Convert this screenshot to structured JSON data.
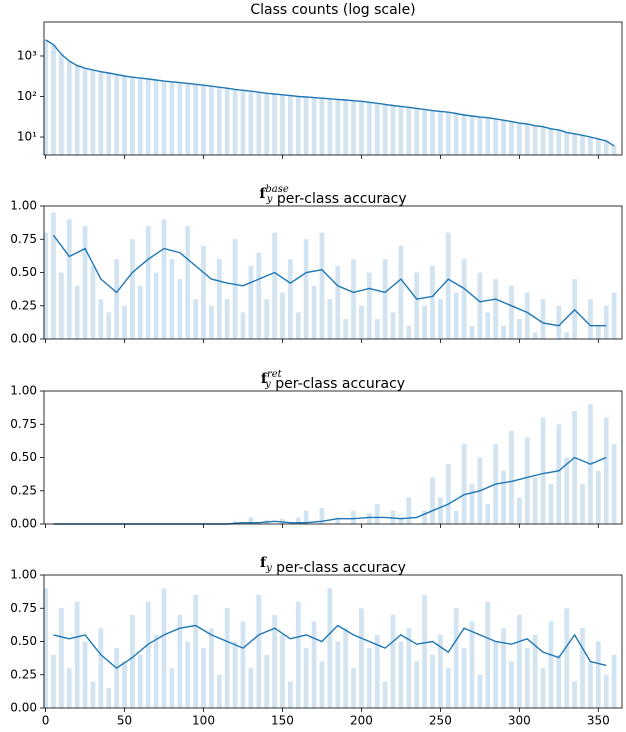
{
  "chart_data": [
    {
      "type": "bar",
      "title": "Class counts (log scale)",
      "log_y": true,
      "line_on_bars": true,
      "bar_color": "#d2e3f1",
      "line_color": "#1f77b4",
      "xlim": [
        -1,
        365
      ],
      "xticks": [
        0,
        50,
        100,
        150,
        200,
        250,
        300,
        350
      ],
      "xtick_labels": false,
      "ylim": [
        3.6,
        6900
      ],
      "yticks": [
        {
          "value": 10,
          "label": "10¹"
        },
        {
          "value": 100,
          "label": "10²"
        },
        {
          "value": 1000,
          "label": "10³"
        }
      ],
      "x": [
        0,
        5,
        10,
        15,
        20,
        25,
        30,
        35,
        40,
        45,
        50,
        55,
        60,
        65,
        70,
        75,
        80,
        85,
        90,
        95,
        100,
        105,
        110,
        115,
        120,
        125,
        130,
        135,
        140,
        145,
        150,
        155,
        160,
        165,
        170,
        175,
        180,
        185,
        190,
        195,
        200,
        205,
        210,
        215,
        220,
        225,
        230,
        235,
        240,
        245,
        250,
        255,
        260,
        265,
        270,
        275,
        280,
        285,
        290,
        295,
        300,
        305,
        310,
        315,
        320,
        325,
        330,
        335,
        340,
        345,
        350,
        355,
        360
      ],
      "bars": [
        2500,
        1900,
        1100,
        750,
        580,
        500,
        450,
        410,
        380,
        350,
        320,
        300,
        285,
        270,
        255,
        240,
        230,
        220,
        210,
        200,
        190,
        180,
        170,
        160,
        150,
        142,
        135,
        128,
        120,
        115,
        110,
        105,
        100,
        97,
        94,
        91,
        88,
        85,
        82,
        79,
        76,
        72,
        68,
        64,
        60,
        57,
        54,
        51,
        48,
        45,
        43,
        41,
        38,
        35,
        33,
        31,
        30,
        28,
        26,
        24,
        22,
        21,
        19,
        18,
        16,
        15,
        13,
        12,
        11,
        10,
        9,
        8,
        6
      ]
    },
    {
      "type": "bar",
      "title_parts": {
        "symbol": "f",
        "sub": "y",
        "sup": "base",
        "text": " per-class accuracy"
      },
      "log_y": false,
      "bar_color": "#d2e3f1",
      "line_color": "#1f77b4",
      "xlim": [
        -1,
        365
      ],
      "xticks": [
        0,
        50,
        100,
        150,
        200,
        250,
        300,
        350
      ],
      "xtick_labels": false,
      "ylim": [
        0,
        1
      ],
      "yticks": [
        {
          "value": 0,
          "label": "0.00"
        },
        {
          "value": 0.25,
          "label": "0.25"
        },
        {
          "value": 0.5,
          "label": "0.50"
        },
        {
          "value": 0.75,
          "label": "0.75"
        },
        {
          "value": 1,
          "label": "1.00"
        }
      ],
      "x": [
        0,
        5,
        10,
        15,
        20,
        25,
        30,
        35,
        40,
        45,
        50,
        55,
        60,
        65,
        70,
        75,
        80,
        85,
        90,
        95,
        100,
        105,
        110,
        115,
        120,
        125,
        130,
        135,
        140,
        145,
        150,
        155,
        160,
        165,
        170,
        175,
        180,
        185,
        190,
        195,
        200,
        205,
        210,
        215,
        220,
        225,
        230,
        235,
        240,
        245,
        250,
        255,
        260,
        265,
        270,
        275,
        280,
        285,
        290,
        295,
        300,
        305,
        310,
        315,
        320,
        325,
        330,
        335,
        340,
        345,
        350,
        355,
        360
      ],
      "bars": [
        0.8,
        0.95,
        0.5,
        0.9,
        0.4,
        0.85,
        0.55,
        0.3,
        0.2,
        0.6,
        0.25,
        0.75,
        0.4,
        0.85,
        0.5,
        0.9,
        0.6,
        0.45,
        0.85,
        0.3,
        0.7,
        0.25,
        0.6,
        0.3,
        0.75,
        0.2,
        0.55,
        0.65,
        0.3,
        0.8,
        0.35,
        0.6,
        0.2,
        0.75,
        0.4,
        0.8,
        0.3,
        0.55,
        0.15,
        0.6,
        0.25,
        0.5,
        0.15,
        0.6,
        0.2,
        0.7,
        0.1,
        0.5,
        0.25,
        0.55,
        0.3,
        0.8,
        0.35,
        0.6,
        0.1,
        0.5,
        0.2,
        0.45,
        0.1,
        0.4,
        0.15,
        0.35,
        0.05,
        0.3,
        0,
        0.25,
        0.05,
        0.45,
        0,
        0.3,
        0.1,
        0.25,
        0.35
      ],
      "line_x": [
        5,
        15,
        25,
        35,
        45,
        55,
        65,
        75,
        85,
        95,
        105,
        115,
        125,
        135,
        145,
        155,
        165,
        175,
        185,
        195,
        205,
        215,
        225,
        235,
        245,
        255,
        265,
        275,
        285,
        295,
        305,
        315,
        325,
        335,
        345,
        355
      ],
      "line_values": [
        0.78,
        0.62,
        0.68,
        0.45,
        0.35,
        0.5,
        0.6,
        0.68,
        0.65,
        0.55,
        0.45,
        0.42,
        0.4,
        0.45,
        0.5,
        0.42,
        0.5,
        0.52,
        0.4,
        0.35,
        0.38,
        0.35,
        0.45,
        0.3,
        0.32,
        0.45,
        0.38,
        0.28,
        0.3,
        0.25,
        0.2,
        0.12,
        0.1,
        0.22,
        0.1,
        0.1
      ]
    },
    {
      "type": "bar",
      "title_parts": {
        "symbol": "f",
        "sub": "y",
        "sup": "ret",
        "text": " per-class accuracy"
      },
      "log_y": false,
      "bar_color": "#d2e3f1",
      "line_color": "#1f77b4",
      "xlim": [
        -1,
        365
      ],
      "xticks": [
        0,
        50,
        100,
        150,
        200,
        250,
        300,
        350
      ],
      "xtick_labels": false,
      "ylim": [
        0,
        1
      ],
      "yticks": [
        {
          "value": 0,
          "label": "0.00"
        },
        {
          "value": 0.25,
          "label": "0.25"
        },
        {
          "value": 0.5,
          "label": "0.50"
        },
        {
          "value": 0.75,
          "label": "0.75"
        },
        {
          "value": 1,
          "label": "1.00"
        }
      ],
      "x": [
        0,
        5,
        10,
        15,
        20,
        25,
        30,
        35,
        40,
        45,
        50,
        55,
        60,
        65,
        70,
        75,
        80,
        85,
        90,
        95,
        100,
        105,
        110,
        115,
        120,
        125,
        130,
        135,
        140,
        145,
        150,
        155,
        160,
        165,
        170,
        175,
        180,
        185,
        190,
        195,
        200,
        205,
        210,
        215,
        220,
        225,
        230,
        235,
        240,
        245,
        250,
        255,
        260,
        265,
        270,
        275,
        280,
        285,
        290,
        295,
        300,
        305,
        310,
        315,
        320,
        325,
        330,
        335,
        340,
        345,
        350,
        355,
        360
      ],
      "bars": [
        0,
        0,
        0,
        0,
        0,
        0,
        0,
        0,
        0,
        0,
        0,
        0,
        0,
        0,
        0,
        0,
        0,
        0,
        0,
        0,
        0,
        0,
        0,
        0,
        0.02,
        0,
        0.05,
        0,
        0.03,
        0,
        0.04,
        0,
        0.05,
        0.1,
        0,
        0.12,
        0,
        0.05,
        0,
        0.1,
        0,
        0.08,
        0.15,
        0,
        0.1,
        0.05,
        0.2,
        0,
        0.1,
        0.35,
        0.2,
        0.45,
        0.1,
        0.6,
        0.3,
        0.5,
        0.15,
        0.6,
        0.4,
        0.7,
        0.2,
        0.65,
        0.35,
        0.8,
        0.3,
        0.75,
        0.5,
        0.85,
        0.3,
        0.9,
        0.4,
        0.8,
        0.6
      ],
      "line_x": [
        5,
        15,
        25,
        35,
        45,
        55,
        65,
        75,
        85,
        95,
        105,
        115,
        125,
        135,
        145,
        155,
        165,
        175,
        185,
        195,
        205,
        215,
        225,
        235,
        245,
        255,
        265,
        275,
        285,
        295,
        305,
        315,
        325,
        335,
        345,
        355
      ],
      "line_values": [
        0,
        0,
        0,
        0,
        0,
        0,
        0,
        0,
        0,
        0,
        0,
        0,
        0.01,
        0.01,
        0.02,
        0.01,
        0.01,
        0.02,
        0.04,
        0.04,
        0.05,
        0.05,
        0.04,
        0.05,
        0.1,
        0.15,
        0.22,
        0.25,
        0.3,
        0.32,
        0.35,
        0.38,
        0.4,
        0.5,
        0.45,
        0.5
      ]
    },
    {
      "type": "bar",
      "title_parts": {
        "symbol": "f",
        "sub": "y",
        "text": " per-class accuracy"
      },
      "log_y": false,
      "bar_color": "#d2e3f1",
      "line_color": "#1f77b4",
      "xlim": [
        -1,
        365
      ],
      "xticks": [
        0,
        50,
        100,
        150,
        200,
        250,
        300,
        350
      ],
      "xtick_labels": true,
      "ylim": [
        0,
        1
      ],
      "yticks": [
        {
          "value": 0,
          "label": "0.00"
        },
        {
          "value": 0.25,
          "label": "0.25"
        },
        {
          "value": 0.5,
          "label": "0.50"
        },
        {
          "value": 0.75,
          "label": "0.75"
        },
        {
          "value": 1,
          "label": "1.00"
        }
      ],
      "x": [
        0,
        5,
        10,
        15,
        20,
        25,
        30,
        35,
        40,
        45,
        50,
        55,
        60,
        65,
        70,
        75,
        80,
        85,
        90,
        95,
        100,
        105,
        110,
        115,
        120,
        125,
        130,
        135,
        140,
        145,
        150,
        155,
        160,
        165,
        170,
        175,
        180,
        185,
        190,
        195,
        200,
        205,
        210,
        215,
        220,
        225,
        230,
        235,
        240,
        245,
        250,
        255,
        260,
        265,
        270,
        275,
        280,
        285,
        290,
        295,
        300,
        305,
        310,
        315,
        320,
        325,
        330,
        335,
        340,
        345,
        350,
        355,
        360
      ],
      "bars": [
        0.9,
        0.4,
        0.75,
        0.3,
        0.8,
        0.5,
        0.2,
        0.6,
        0.15,
        0.45,
        0.35,
        0.7,
        0.4,
        0.8,
        0.55,
        0.9,
        0.3,
        0.7,
        0.5,
        0.85,
        0.45,
        0.6,
        0.25,
        0.75,
        0.5,
        0.65,
        0.3,
        0.85,
        0.4,
        0.7,
        0.55,
        0.2,
        0.8,
        0.45,
        0.65,
        0.35,
        0.9,
        0.5,
        0.6,
        0.3,
        0.75,
        0.45,
        0.55,
        0.2,
        0.7,
        0.5,
        0.6,
        0.35,
        0.85,
        0.4,
        0.55,
        0.3,
        0.75,
        0.45,
        0.65,
        0.25,
        0.8,
        0.5,
        0.6,
        0.35,
        0.7,
        0.45,
        0.55,
        0.3,
        0.65,
        0.4,
        0.75,
        0.2,
        0.6,
        0.35,
        0.5,
        0.25,
        0.4
      ],
      "line_x": [
        5,
        15,
        25,
        35,
        45,
        55,
        65,
        75,
        85,
        95,
        105,
        115,
        125,
        135,
        145,
        155,
        165,
        175,
        185,
        195,
        205,
        215,
        225,
        235,
        245,
        255,
        265,
        275,
        285,
        295,
        305,
        315,
        325,
        335,
        345,
        355
      ],
      "line_values": [
        0.55,
        0.52,
        0.55,
        0.4,
        0.3,
        0.38,
        0.48,
        0.55,
        0.6,
        0.62,
        0.55,
        0.5,
        0.45,
        0.55,
        0.6,
        0.52,
        0.55,
        0.5,
        0.62,
        0.55,
        0.5,
        0.45,
        0.55,
        0.48,
        0.5,
        0.42,
        0.6,
        0.55,
        0.5,
        0.48,
        0.52,
        0.42,
        0.38,
        0.55,
        0.35,
        0.32
      ]
    }
  ]
}
